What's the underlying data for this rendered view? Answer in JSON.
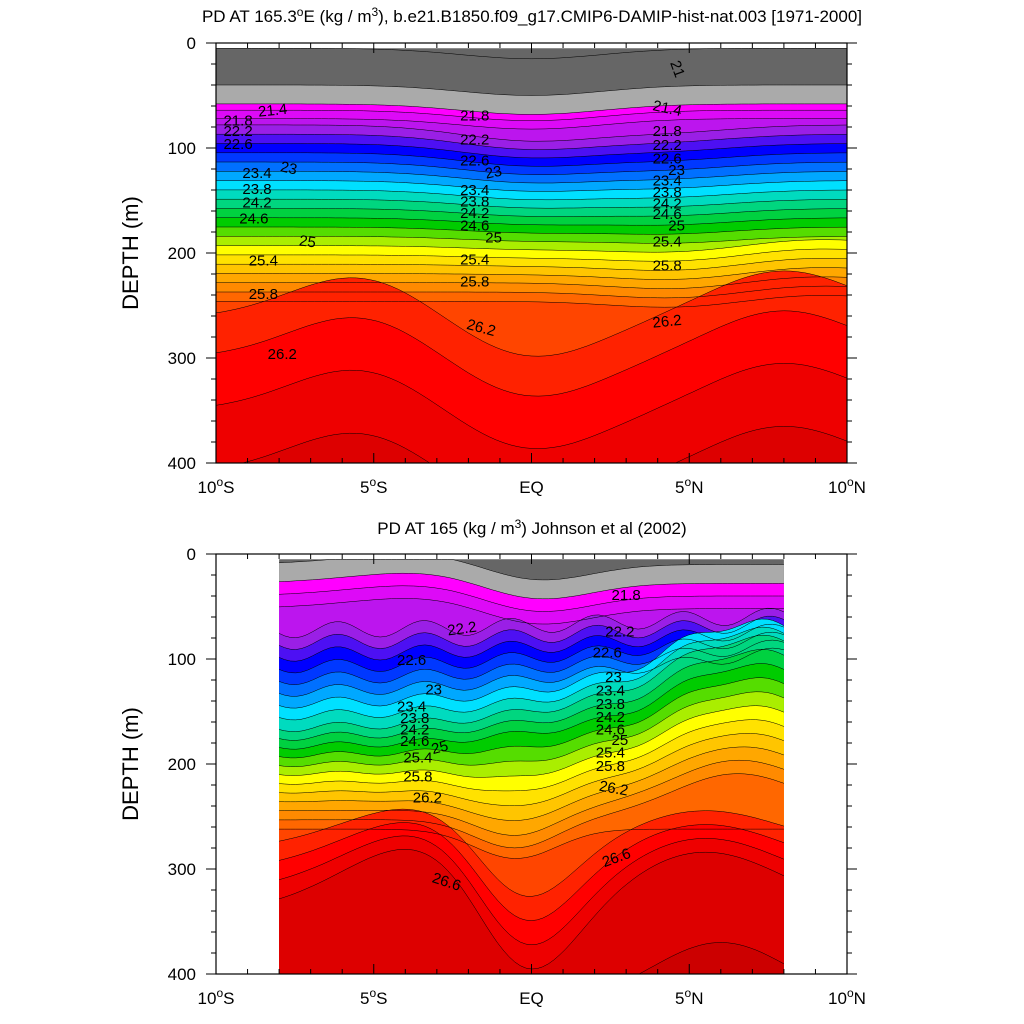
{
  "colors": {
    "magenta": "#ff00ff",
    "purple": "#9a1fe6",
    "blue": "#0000ff",
    "cyan": "#00e0ff",
    "green": "#00cc00",
    "yellow": "#ffff00",
    "orange": "#ff8a00",
    "red": "#ff0000",
    "darkred": "#cc0000",
    "grey_light": "#aaaaaa",
    "grey_dark": "#666666"
  },
  "chart_data": [
    {
      "type": "contour",
      "title": "PD AT 165.3°E (kg / m³), b.e21.B1850.f09_g17.CMIP6-DAMIP-hist-nat.003 [1971-2000]",
      "title_parts": {
        "t1": "PD AT 165.3",
        "t2": "E (kg / m",
        "t3": "), b.e21.B1850.f09_g17.CMIP6-DAMIP-hist-nat.003 [1971-2000]"
      },
      "ylabel": "DEPTH (m)",
      "xlim": [
        -10,
        10
      ],
      "ylim": [
        400,
        0
      ],
      "y_reversed": true,
      "x_ticks": [
        -10,
        -5,
        0,
        5,
        10
      ],
      "x_tick_labels": [
        {
          "num": "10",
          "hemi": "S"
        },
        {
          "num": "5",
          "hemi": "S"
        },
        {
          "num": "EQ",
          "hemi": ""
        },
        {
          "num": "5",
          "hemi": "N"
        },
        {
          "num": "10",
          "hemi": "N"
        }
      ],
      "y_ticks": [
        0,
        100,
        200,
        300,
        400
      ],
      "y_tick_labels": [
        "0",
        "100",
        "200",
        "300",
        "400"
      ],
      "data_x_range": [
        -10,
        10
      ],
      "data_y_range": [
        5,
        400
      ],
      "fill_levels": [
        20.6,
        21.0,
        21.4,
        21.6,
        21.8,
        22.0,
        22.2,
        22.4,
        22.6,
        22.8,
        23.0,
        23.2,
        23.4,
        23.6,
        23.8,
        24.0,
        24.2,
        24.4,
        24.6,
        24.8,
        25.0,
        25.2,
        25.4,
        25.6,
        25.8,
        26.0,
        26.2,
        26.4,
        26.6
      ],
      "contour_labels": [
        {
          "text": "21",
          "x": 4.6,
          "y": 25,
          "rot": 70
        },
        {
          "text": "21.4",
          "x": -8.2,
          "y": 65,
          "rot": -6
        },
        {
          "text": "21.8",
          "x": -9.3,
          "y": 75
        },
        {
          "text": "22.2",
          "x": -9.3,
          "y": 85
        },
        {
          "text": "22.6",
          "x": -9.3,
          "y": 97
        },
        {
          "text": "23",
          "x": -7.7,
          "y": 120,
          "rot": 12
        },
        {
          "text": "23.4",
          "x": -8.7,
          "y": 125
        },
        {
          "text": "23.8",
          "x": -8.7,
          "y": 140
        },
        {
          "text": "24.2",
          "x": -8.7,
          "y": 153
        },
        {
          "text": "24.6",
          "x": -8.8,
          "y": 168
        },
        {
          "text": "25",
          "x": -7.1,
          "y": 190,
          "rot": 8
        },
        {
          "text": "25.4",
          "x": -8.5,
          "y": 208
        },
        {
          "text": "25.8",
          "x": -8.5,
          "y": 240
        },
        {
          "text": "26.2",
          "x": -7.9,
          "y": 297
        },
        {
          "text": "21.8",
          "x": -1.8,
          "y": 70
        },
        {
          "text": "22.2",
          "x": -1.8,
          "y": 93
        },
        {
          "text": "22.6",
          "x": -1.8,
          "y": 113
        },
        {
          "text": "23",
          "x": -1.2,
          "y": 124,
          "rot": -12
        },
        {
          "text": "23.4",
          "x": -1.8,
          "y": 141
        },
        {
          "text": "23.8",
          "x": -1.8,
          "y": 152
        },
        {
          "text": "24.2",
          "x": -1.8,
          "y": 163
        },
        {
          "text": "24.6",
          "x": -1.8,
          "y": 175
        },
        {
          "text": "25",
          "x": -1.2,
          "y": 186
        },
        {
          "text": "25.4",
          "x": -1.8,
          "y": 207
        },
        {
          "text": "25.8",
          "x": -1.8,
          "y": 228
        },
        {
          "text": "26.2",
          "x": -1.6,
          "y": 272,
          "rot": 15
        },
        {
          "text": "21.4",
          "x": 4.3,
          "y": 63,
          "rot": 12
        },
        {
          "text": "21.8",
          "x": 4.3,
          "y": 85
        },
        {
          "text": "22.2",
          "x": 4.3,
          "y": 98
        },
        {
          "text": "22.6",
          "x": 4.3,
          "y": 111
        },
        {
          "text": "23",
          "x": 4.6,
          "y": 122
        },
        {
          "text": "23.4",
          "x": 4.3,
          "y": 132
        },
        {
          "text": "23.8",
          "x": 4.3,
          "y": 143
        },
        {
          "text": "24.2",
          "x": 4.3,
          "y": 154
        },
        {
          "text": "24.6",
          "x": 4.3,
          "y": 164
        },
        {
          "text": "25",
          "x": 4.6,
          "y": 175
        },
        {
          "text": "25.4",
          "x": 4.3,
          "y": 190
        },
        {
          "text": "25.8",
          "x": 4.3,
          "y": 213
        },
        {
          "text": "26.2",
          "x": 4.3,
          "y": 266,
          "rot": -6
        }
      ]
    },
    {
      "type": "contour",
      "title": "PD AT 165 (kg / m³) Johnson et al (2002)",
      "title_parts": {
        "t1": "PD AT 165 (kg / m",
        "t2": "",
        "t3": ") Johnson et al (2002)"
      },
      "ylabel": "DEPTH (m)",
      "xlim": [
        -10,
        10
      ],
      "ylim": [
        400,
        0
      ],
      "y_reversed": true,
      "x_ticks": [
        -10,
        -5,
        0,
        5,
        10
      ],
      "x_tick_labels": [
        {
          "num": "10",
          "hemi": "S"
        },
        {
          "num": "5",
          "hemi": "S"
        },
        {
          "num": "EQ",
          "hemi": ""
        },
        {
          "num": "5",
          "hemi": "N"
        },
        {
          "num": "10",
          "hemi": "N"
        }
      ],
      "y_ticks": [
        0,
        100,
        200,
        300,
        400
      ],
      "y_tick_labels": [
        "0",
        "100",
        "200",
        "300",
        "400"
      ],
      "data_x_range": [
        -8,
        8
      ],
      "data_y_range": [
        5,
        400
      ],
      "fill_levels": [
        21.0,
        21.4,
        21.6,
        21.8,
        22.0,
        22.2,
        22.4,
        22.6,
        22.8,
        23.0,
        23.2,
        23.4,
        23.6,
        23.8,
        24.0,
        24.2,
        24.4,
        24.6,
        24.8,
        25.0,
        25.2,
        25.4,
        25.6,
        25.8,
        26.0,
        26.2,
        26.4,
        26.6,
        26.8
      ],
      "contour_labels": [
        {
          "text": "21.8",
          "x": 3.0,
          "y": 40
        },
        {
          "text": "22.2",
          "x": -2.2,
          "y": 72,
          "rot": -8
        },
        {
          "text": "22.6",
          "x": -3.8,
          "y": 102
        },
        {
          "text": "23",
          "x": -3.1,
          "y": 130
        },
        {
          "text": "23.4",
          "x": -3.8,
          "y": 146
        },
        {
          "text": "23.8",
          "x": -3.7,
          "y": 157
        },
        {
          "text": "24.2",
          "x": -3.7,
          "y": 168
        },
        {
          "text": "24.6",
          "x": -3.7,
          "y": 179
        },
        {
          "text": "25",
          "x": -2.9,
          "y": 185,
          "rot": -15
        },
        {
          "text": "25.4",
          "x": -3.6,
          "y": 195
        },
        {
          "text": "25.8",
          "x": -3.6,
          "y": 213
        },
        {
          "text": "26.2",
          "x": -3.3,
          "y": 233
        },
        {
          "text": "26.6",
          "x": -2.7,
          "y": 313,
          "rot": 18
        },
        {
          "text": "22.2",
          "x": 2.8,
          "y": 75
        },
        {
          "text": "22.6",
          "x": 2.4,
          "y": 95
        },
        {
          "text": "23",
          "x": 2.6,
          "y": 118
        },
        {
          "text": "23.4",
          "x": 2.5,
          "y": 131
        },
        {
          "text": "23.8",
          "x": 2.5,
          "y": 144
        },
        {
          "text": "24.2",
          "x": 2.5,
          "y": 156
        },
        {
          "text": "24.6",
          "x": 2.5,
          "y": 168
        },
        {
          "text": "25",
          "x": 2.8,
          "y": 178
        },
        {
          "text": "25.4",
          "x": 2.5,
          "y": 190
        },
        {
          "text": "25.8",
          "x": 2.5,
          "y": 203
        },
        {
          "text": "26.2",
          "x": 2.6,
          "y": 224,
          "rot": 10
        },
        {
          "text": "26.6",
          "x": 2.7,
          "y": 290,
          "rot": -20
        }
      ]
    }
  ]
}
